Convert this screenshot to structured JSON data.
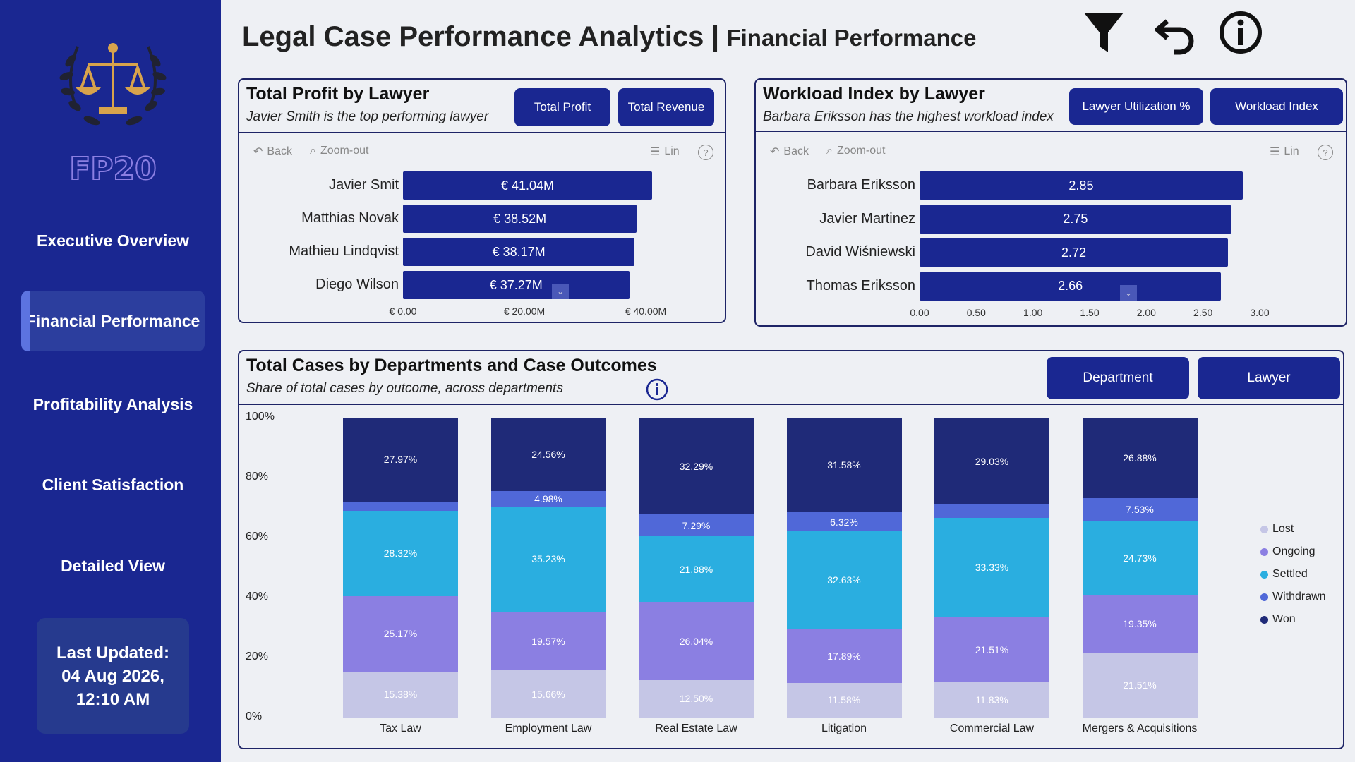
{
  "app": {
    "title": "Legal Case Performance Analytics",
    "separator": "|",
    "subtitle": "Financial Performance"
  },
  "sidebar": {
    "logo_text": "FP20",
    "items": [
      {
        "label": "Executive Overview"
      },
      {
        "label": "Financial Performance",
        "active": true
      },
      {
        "label": "Profitability Analysis"
      },
      {
        "label": "Client Satisfaction"
      },
      {
        "label": "Detailed View"
      }
    ],
    "updated": {
      "line1": "Last Updated:",
      "line2": "04 Aug 2026,",
      "line3": "12:10 AM"
    }
  },
  "header_icons": [
    "filter-icon",
    "undo-icon",
    "info-icon"
  ],
  "toolbar": {
    "back": "Back",
    "zoom": "Zoom-out",
    "lin": "Lin",
    "help": "?"
  },
  "profit_panel": {
    "title": "Total Profit by Lawyer",
    "subtitle": "Javier Smith is the top performing lawyer",
    "buttons": [
      "Total Profit",
      "Total Revenue"
    ],
    "chart_data": {
      "type": "bar",
      "orientation": "horizontal",
      "categories": [
        "Javier Smit",
        "Matthias Novak",
        "Mathieu Lindqvist",
        "Diego Wilson"
      ],
      "values": [
        41.04,
        38.52,
        38.17,
        37.27
      ],
      "value_labels": [
        "€ 41.04M",
        "€ 38.52M",
        "€ 38.17M",
        "€ 37.27M"
      ],
      "xlim": [
        0,
        40
      ],
      "xticks": [
        0,
        20,
        40
      ],
      "xtick_labels": [
        "€ 0.00",
        "€ 20.00M",
        "€ 40.00M"
      ],
      "unit": "€M",
      "color": "#1a2791"
    }
  },
  "workload_panel": {
    "title": "Workload Index by Lawyer",
    "subtitle": "Barbara Eriksson has the highest workload index",
    "buttons": [
      "Lawyer Utilization %",
      "Workload Index"
    ],
    "chart_data": {
      "type": "bar",
      "orientation": "horizontal",
      "categories": [
        "Barbara Eriksson",
        "Javier Martinez",
        "David Wiśniewski",
        "Thomas Eriksson"
      ],
      "values": [
        2.85,
        2.75,
        2.72,
        2.66
      ],
      "value_labels": [
        "2.85",
        "2.75",
        "2.72",
        "2.66"
      ],
      "xlim": [
        0,
        3
      ],
      "xticks": [
        0,
        0.5,
        1,
        1.5,
        2,
        2.5,
        3
      ],
      "xtick_labels": [
        "0.00",
        "0.50",
        "1.00",
        "1.50",
        "2.00",
        "2.50",
        "3.00"
      ],
      "color": "#1a2791"
    }
  },
  "cases_panel": {
    "title": "Total Cases by Departments and Case Outcomes",
    "subtitle": "Share of total cases by outcome, across departments",
    "buttons": [
      "Department",
      "Lawyer"
    ],
    "chart_data": {
      "type": "bar",
      "stacked": "percent",
      "categories": [
        "Tax Law",
        "Employment Law",
        "Real Estate Law",
        "Litigation",
        "Commercial Law",
        "Mergers & Acquisitions"
      ],
      "ylim": [
        0,
        100
      ],
      "yticks": [
        "0%",
        "20%",
        "40%",
        "60%",
        "80%",
        "100%"
      ],
      "legend_position": "right",
      "series": [
        {
          "name": "Lost",
          "color": "#c5c6e6",
          "values": [
            15.38,
            15.66,
            12.5,
            11.58,
            11.83,
            21.51
          ],
          "labels": [
            "15.38%",
            "15.66%",
            "12.50%",
            "11.58%",
            "11.83%",
            "21.51%"
          ]
        },
        {
          "name": "Ongoing",
          "color": "#8b7fe2",
          "values": [
            25.17,
            19.57,
            26.04,
            17.89,
            21.51,
            19.35
          ],
          "labels": [
            "25.17%",
            "19.57%",
            "26.04%",
            "17.89%",
            "21.51%",
            "19.35%"
          ]
        },
        {
          "name": "Settled",
          "color": "#2aaee0",
          "values": [
            28.32,
            35.23,
            21.88,
            32.63,
            33.33,
            24.73
          ],
          "labels": [
            "28.32%",
            "35.23%",
            "21.88%",
            "32.63%",
            "33.33%",
            "24.73%"
          ]
        },
        {
          "name": "Withdrawn",
          "color": "#5068d8",
          "values": [
            3.16,
            4.98,
            7.29,
            6.32,
            4.3,
            7.53
          ],
          "labels": [
            "",
            "4.98%",
            "7.29%",
            "6.32%",
            "",
            "7.53%"
          ]
        },
        {
          "name": "Won",
          "color": "#1f2a78",
          "values": [
            27.97,
            24.56,
            32.29,
            31.58,
            29.03,
            26.88
          ],
          "labels": [
            "27.97%",
            "24.56%",
            "32.29%",
            "31.58%",
            "29.03%",
            "26.88%"
          ]
        }
      ]
    }
  }
}
